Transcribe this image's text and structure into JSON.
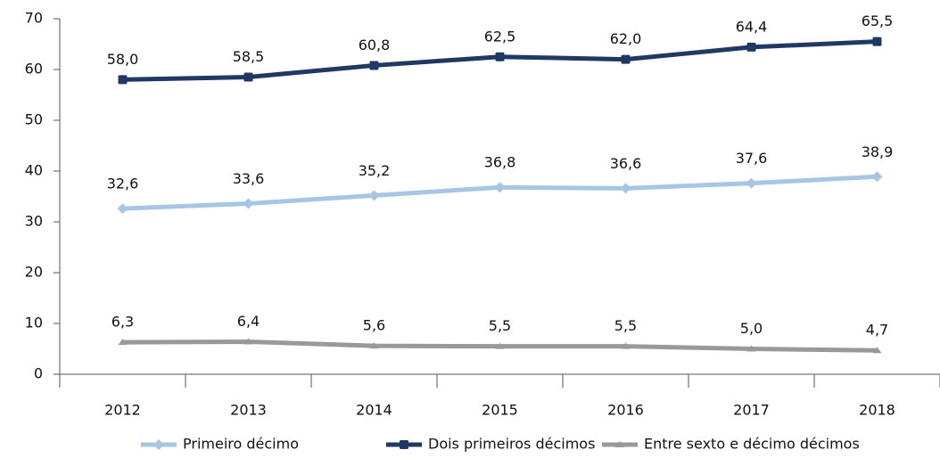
{
  "chart_data": {
    "type": "line",
    "categories": [
      "2012",
      "2013",
      "2014",
      "2015",
      "2016",
      "2017",
      "2018"
    ],
    "series": [
      {
        "name": "Primeiro décimo",
        "color": "#a7c6e6",
        "marker": "diamond",
        "values": [
          32.6,
          33.6,
          35.2,
          36.8,
          36.6,
          37.6,
          38.9
        ],
        "value_labels": [
          "32,6",
          "33,6",
          "35,2",
          "36,8",
          "36,6",
          "37,6",
          "38,9"
        ]
      },
      {
        "name": "Dois primeiros décimos",
        "color": "#1f3864",
        "marker": "square",
        "values": [
          58.0,
          58.5,
          60.8,
          62.5,
          62.0,
          64.4,
          65.5
        ],
        "value_labels": [
          "58,0",
          "58,5",
          "60,8",
          "62,5",
          "62,0",
          "64,4",
          "65,5"
        ]
      },
      {
        "name": "Entre sexto e décimo décimos",
        "color": "#999999",
        "marker": "triangle",
        "values": [
          6.3,
          6.4,
          5.6,
          5.5,
          5.5,
          5.0,
          4.7
        ],
        "value_labels": [
          "6,3",
          "6,4",
          "5,6",
          "5,5",
          "5,5",
          "5,0",
          "4,7"
        ]
      }
    ],
    "ylim": [
      0,
      70
    ],
    "yticks": [
      0,
      10,
      20,
      30,
      40,
      50,
      60,
      70
    ],
    "grid": false,
    "legend": "bottom"
  }
}
